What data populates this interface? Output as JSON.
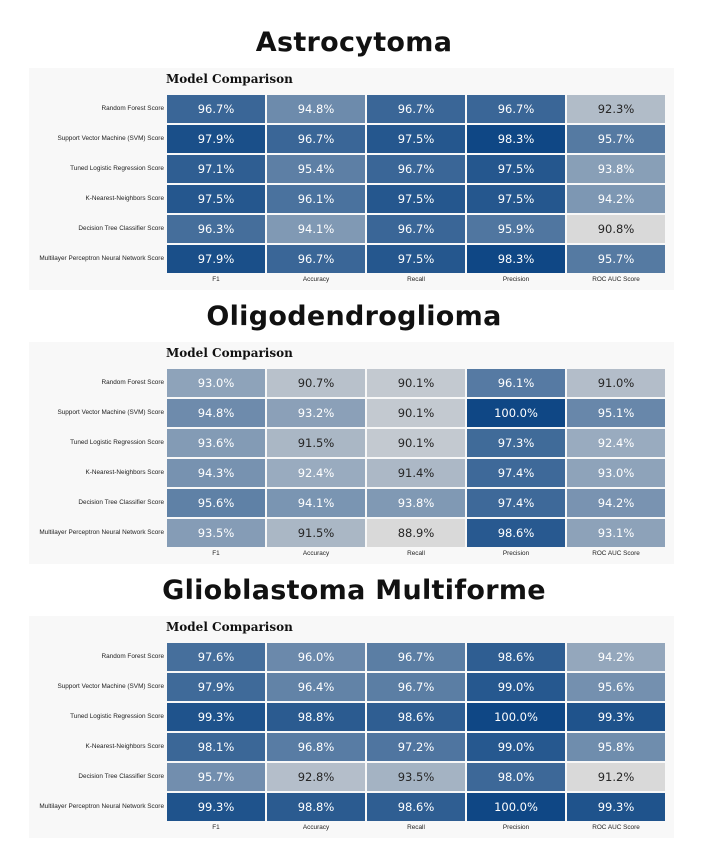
{
  "figure": {
    "panel_title": "Model Comparison",
    "color_low": "#d9d9d9",
    "color_high": "#0f4785"
  },
  "chart_data": [
    {
      "type": "heatmap",
      "title": "Astrocytoma",
      "subtitle": "Model Comparison",
      "rows": [
        "Random Forest Score",
        "Support Vector Machine (SVM) Score",
        "Tuned Logistic Regression Score",
        "K-Nearest-Neighbors Score",
        "Decision Tree Classifier Score",
        "Multilayer Perceptron Neural Network Score"
      ],
      "columns": [
        "F1",
        "Accuracy",
        "Recall",
        "Precision",
        "ROC AUC Score"
      ],
      "values": [
        [
          "96.7%",
          "94.8%",
          "96.7%",
          "96.7%",
          "92.3%"
        ],
        [
          "97.9%",
          "96.7%",
          "97.5%",
          "98.3%",
          "95.7%"
        ],
        [
          "97.1%",
          "95.4%",
          "96.7%",
          "97.5%",
          "93.8%"
        ],
        [
          "97.5%",
          "96.1%",
          "97.5%",
          "97.5%",
          "94.2%"
        ],
        [
          "96.3%",
          "94.1%",
          "96.7%",
          "95.9%",
          "90.8%"
        ],
        [
          "97.9%",
          "96.7%",
          "97.5%",
          "98.3%",
          "95.7%"
        ]
      ]
    },
    {
      "type": "heatmap",
      "title": "Oligodendroglioma",
      "subtitle": "Model Comparison",
      "rows": [
        "Random Forest Score",
        "Support Vector Machine (SVM) Score",
        "Tuned Logistic Regression Score",
        "K-Nearest-Neighbors Score",
        "Decision Tree Classifier Score",
        "Multilayer Perceptron Neural Network Score"
      ],
      "columns": [
        "F1",
        "Accuracy",
        "Recall",
        "Precision",
        "ROC AUC Score"
      ],
      "values": [
        [
          "93.0%",
          "90.7%",
          "90.1%",
          "96.1%",
          "91.0%"
        ],
        [
          "94.8%",
          "93.2%",
          "90.1%",
          "100.0%",
          "95.1%"
        ],
        [
          "93.6%",
          "91.5%",
          "90.1%",
          "97.3%",
          "92.4%"
        ],
        [
          "94.3%",
          "92.4%",
          "91.4%",
          "97.4%",
          "93.0%"
        ],
        [
          "95.6%",
          "94.1%",
          "93.8%",
          "97.4%",
          "94.2%"
        ],
        [
          "93.5%",
          "91.5%",
          "88.9%",
          "98.6%",
          "93.1%"
        ]
      ]
    },
    {
      "type": "heatmap",
      "title": "Glioblastoma Multiforme",
      "subtitle": "Model Comparison",
      "rows": [
        "Random Forest Score",
        "Support Vector Machine (SVM) Score",
        "Tuned Logistic Regression Score",
        "K-Nearest-Neighbors Score",
        "Decision Tree Classifier Score",
        "Multilayer Perceptron Neural Network Score"
      ],
      "columns": [
        "F1",
        "Accuracy",
        "Recall",
        "Precision",
        "ROC AUC Score"
      ],
      "values": [
        [
          "97.6%",
          "96.0%",
          "96.7%",
          "98.6%",
          "94.2%"
        ],
        [
          "97.9%",
          "96.4%",
          "96.7%",
          "99.0%",
          "95.6%"
        ],
        [
          "99.3%",
          "98.8%",
          "98.6%",
          "100.0%",
          "99.3%"
        ],
        [
          "98.1%",
          "96.8%",
          "97.2%",
          "99.0%",
          "95.8%"
        ],
        [
          "95.7%",
          "92.8%",
          "93.5%",
          "98.0%",
          "91.2%"
        ],
        [
          "99.3%",
          "98.8%",
          "98.6%",
          "100.0%",
          "99.3%"
        ]
      ]
    }
  ]
}
